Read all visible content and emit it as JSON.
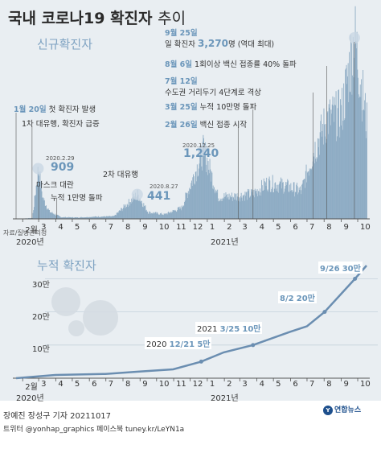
{
  "title": "국내 코로나19 확진자",
  "title_suffix": "추이",
  "section_daily": "신규확진자",
  "section_cumulative": "누적 확진자",
  "colors": {
    "bar": "#8eacc4",
    "accent": "#6b96ba",
    "line": "#6b8eb1",
    "panel": "#e9eef2"
  },
  "annotations": {
    "a1": {
      "date": "1월 20일",
      "text": "첫 확진자 발생"
    },
    "a2": {
      "text": "1차 대유행, 확진자 급증"
    },
    "a3": {
      "small": "2020.2.29",
      "value": "909"
    },
    "a4": {
      "text": "마스크 대란"
    },
    "a5": {
      "text": "누적 1만명 돌파"
    },
    "a6": {
      "text": "2차 대유행"
    },
    "a7": {
      "small": "2020.8.27",
      "value": "441"
    },
    "a8": {
      "small": "2020.12.25",
      "value": "1,240"
    },
    "a9": {
      "date": "2월 26일",
      "text": "백신 접종 시작"
    },
    "a10": {
      "date": "3월 25일",
      "text": "누적 10만명 돌파"
    },
    "a11": {
      "date": "7월 12일",
      "text": "수도권 거리두기 4단계로 격상"
    },
    "a12": {
      "date": "8월 6일",
      "text": "1회이상 백신 접종률 40% 돌파"
    },
    "a13": {
      "date": "9월 25일",
      "pre": "일 확진자",
      "value": "3,270",
      "post": "명 (역대 최대)"
    }
  },
  "axis_months": [
    "2월",
    "3",
    "4",
    "5",
    "6",
    "7",
    "8",
    "9",
    "10",
    "11",
    "12",
    "1",
    "2",
    "3",
    "4",
    "5",
    "6",
    "7",
    "8",
    "9",
    "10"
  ],
  "axis_years": [
    "2020년",
    "2021년"
  ],
  "cum_labels": {
    "c1": {
      "year": "2020",
      "date": "12/21",
      "value": "5만"
    },
    "c2": {
      "year": "2021",
      "date": "3/25",
      "value": "10만"
    },
    "c3": {
      "date": "8/2",
      "value": "20만"
    },
    "c4": {
      "date": "9/26",
      "value": "30만"
    }
  },
  "source": "자료/질병관리청",
  "credit_line1": "장예진 장성구 기자  20211017",
  "credit_line2": "트위터 @yonhap_graphics  페이스북 tuney.kr/LeYN1a",
  "logo_text": "연합뉴스",
  "chart_data": [
    {
      "type": "bar",
      "title": "신규확진자",
      "xlabel": "",
      "ylabel": "",
      "x_range": [
        "2020-01-20",
        "2021-10-17"
      ],
      "series": [
        {
          "values": [
            {
              "x": "2020-01-20",
              "y": 1
            },
            {
              "x": "2020-02-18",
              "y": 15
            },
            {
              "x": "2020-02-29",
              "y": 909
            },
            {
              "x": "2020-03-08",
              "y": 370
            },
            {
              "x": "2020-03-20",
              "y": 130
            },
            {
              "x": "2020-04-10",
              "y": 30
            },
            {
              "x": "2020-05-10",
              "y": 25
            },
            {
              "x": "2020-06-15",
              "y": 40
            },
            {
              "x": "2020-07-15",
              "y": 45
            },
            {
              "x": "2020-08-27",
              "y": 441
            },
            {
              "x": "2020-09-15",
              "y": 120
            },
            {
              "x": "2020-10-15",
              "y": 80
            },
            {
              "x": "2020-11-15",
              "y": 200
            },
            {
              "x": "2020-12-25",
              "y": 1240
            },
            {
              "x": "2021-01-20",
              "y": 400
            },
            {
              "x": "2021-02-15",
              "y": 400
            },
            {
              "x": "2021-03-25",
              "y": 450
            },
            {
              "x": "2021-04-20",
              "y": 650
            },
            {
              "x": "2021-05-20",
              "y": 600
            },
            {
              "x": "2021-06-20",
              "y": 500
            },
            {
              "x": "2021-07-12",
              "y": 1200
            },
            {
              "x": "2021-08-06",
              "y": 1800
            },
            {
              "x": "2021-09-01",
              "y": 1900
            },
            {
              "x": "2021-09-25",
              "y": 3270
            },
            {
              "x": "2021-10-17",
              "y": 1700
            }
          ]
        }
      ],
      "labeled_points": [
        {
          "date": "2020.2.29",
          "value": 909
        },
        {
          "date": "2020.8.27",
          "value": 441
        },
        {
          "date": "2020.12.25",
          "value": 1240
        },
        {
          "date": "2021.9.25",
          "value": 3270
        }
      ]
    },
    {
      "type": "line",
      "title": "누적 확진자",
      "xlabel": "",
      "ylabel": "",
      "y_ticks": [
        "10만",
        "20만",
        "30만"
      ],
      "ylim": [
        0,
        340000
      ],
      "series": [
        {
          "values": [
            {
              "x": "2020-01-20",
              "y": 0
            },
            {
              "x": "2020-03-31",
              "y": 9800
            },
            {
              "x": "2020-06-30",
              "y": 12800
            },
            {
              "x": "2020-08-31",
              "y": 20000
            },
            {
              "x": "2020-10-31",
              "y": 26600
            },
            {
              "x": "2020-12-21",
              "y": 50000
            },
            {
              "x": "2021-01-31",
              "y": 78000
            },
            {
              "x": "2021-03-25",
              "y": 100000
            },
            {
              "x": "2021-05-31",
              "y": 140000
            },
            {
              "x": "2021-07-01",
              "y": 157000
            },
            {
              "x": "2021-08-02",
              "y": 200000
            },
            {
              "x": "2021-09-26",
              "y": 300000
            },
            {
              "x": "2021-10-17",
              "y": 340000
            }
          ]
        }
      ]
    }
  ]
}
